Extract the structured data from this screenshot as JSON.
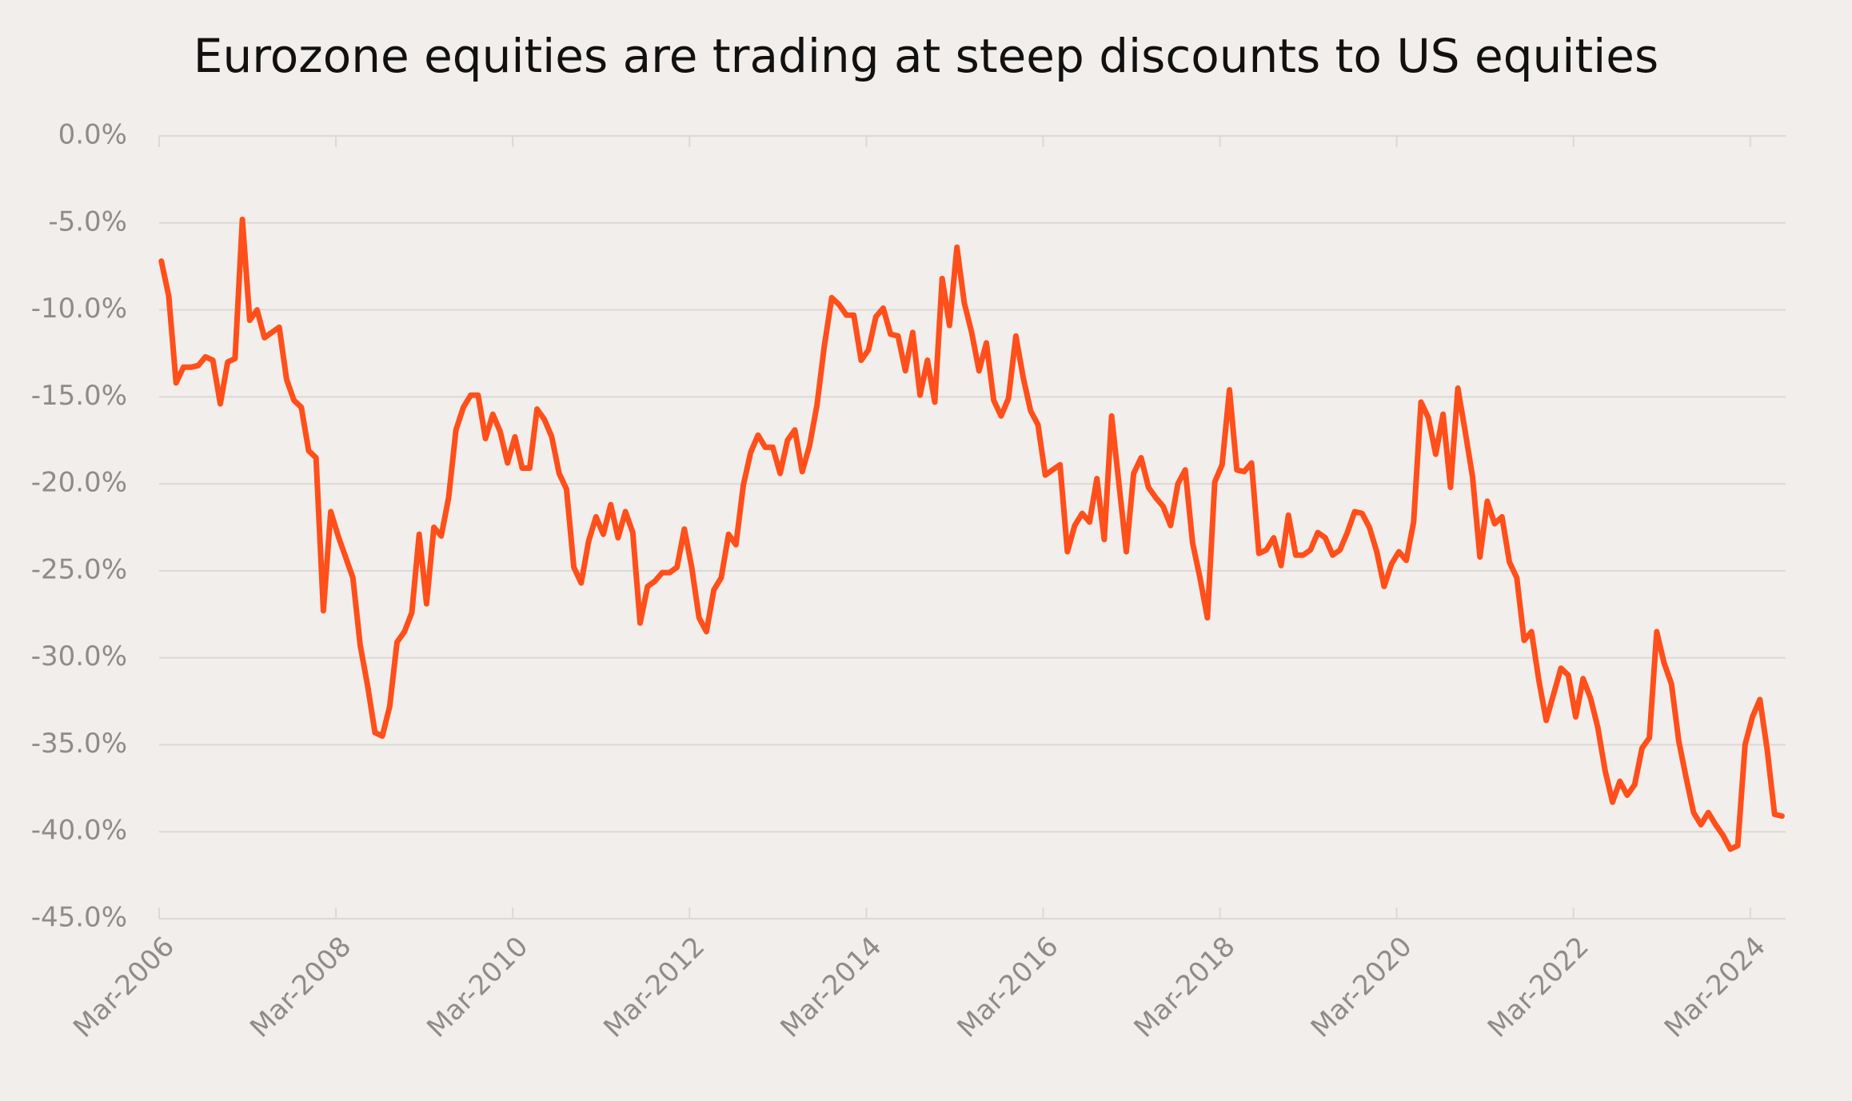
{
  "chart_data": {
    "type": "line",
    "title": "Eurozone equities are trading at steep discounts to US equities",
    "categories": [
      "Mar-2006",
      null,
      null,
      null,
      null,
      null,
      null,
      null,
      null,
      null,
      null,
      null,
      null,
      null,
      null,
      null,
      null,
      null,
      null,
      null,
      null,
      null,
      null,
      null,
      "Mar-2008",
      null,
      null,
      null,
      null,
      null,
      null,
      null,
      null,
      null,
      null,
      null,
      null,
      null,
      null,
      null,
      null,
      null,
      null,
      null,
      null,
      null,
      null,
      null,
      "Mar-2010",
      null,
      null,
      null,
      null,
      null,
      null,
      null,
      null,
      null,
      null,
      null,
      null,
      null,
      null,
      null,
      null,
      null,
      null,
      null,
      null,
      null,
      null,
      null,
      "Mar-2012",
      null,
      null,
      null,
      null,
      null,
      null,
      null,
      null,
      null,
      null,
      null,
      null,
      null,
      null,
      null,
      null,
      null,
      null,
      null,
      null,
      null,
      null,
      null,
      "Mar-2014",
      null,
      null,
      null,
      null,
      null,
      null,
      null,
      null,
      null,
      null,
      null,
      null,
      null,
      null,
      null,
      null,
      null,
      null,
      null,
      null,
      null,
      null,
      null,
      "Mar-2016",
      null,
      null,
      null,
      null,
      null,
      null,
      null,
      null,
      null,
      null,
      null,
      null,
      null,
      null,
      null,
      null,
      null,
      null,
      null,
      null,
      null,
      null,
      null,
      "Mar-2018",
      null,
      null,
      null,
      null,
      null,
      null,
      null,
      null,
      null,
      null,
      null,
      null,
      null,
      null,
      null,
      null,
      null,
      null,
      null,
      null,
      null,
      null,
      null,
      "Mar-2020",
      null,
      null,
      null,
      null,
      null,
      null,
      null,
      null,
      null,
      null,
      null,
      null,
      null,
      null,
      null,
      null,
      null,
      null,
      null,
      null,
      null,
      null,
      null,
      "Mar-2022",
      null,
      null,
      null,
      null,
      null,
      null,
      null,
      null,
      null,
      null,
      null,
      null,
      null,
      null,
      null,
      null,
      null,
      null,
      null,
      null,
      null,
      null,
      null,
      "Mar-2024",
      null,
      null,
      null,
      null
    ],
    "series": [
      {
        "color": "#ff4f1a",
        "values": [
          -7.2,
          -9.2,
          -14.2,
          -13.3,
          -13.3,
          -13.2,
          -12.7,
          -12.9,
          -15.4,
          -13.0,
          -12.8,
          -4.8,
          -10.6,
          -10.0,
          -11.6,
          -11.3,
          -11.0,
          -14.0,
          -15.2,
          -15.6,
          -18.1,
          -18.5,
          -27.3,
          -21.6,
          -23.0,
          -24.2,
          -25.4,
          -29.3,
          -31.6,
          -34.3,
          -34.5,
          -32.8,
          -29.1,
          -28.5,
          -27.4,
          -22.9,
          -26.9,
          -22.5,
          -23.0,
          -20.8,
          -16.9,
          -15.6,
          -14.9,
          -14.9,
          -17.4,
          -16.0,
          -17.0,
          -18.8,
          -17.3,
          -19.1,
          -19.1,
          -15.7,
          -16.3,
          -17.3,
          -19.4,
          -20.3,
          -24.8,
          -25.7,
          -23.3,
          -21.9,
          -22.9,
          -21.2,
          -23.1,
          -21.6,
          -22.8,
          -28.0,
          -25.9,
          -25.6,
          -25.1,
          -25.1,
          -24.8,
          -22.6,
          -24.8,
          -27.7,
          -28.5,
          -26.1,
          -25.4,
          -22.9,
          -23.5,
          -20.1,
          -18.2,
          -17.2,
          -17.9,
          -17.9,
          -19.4,
          -17.5,
          -16.9,
          -19.3,
          -17.8,
          -15.5,
          -12.1,
          -9.3,
          -9.7,
          -10.3,
          -10.3,
          -12.9,
          -12.3,
          -10.4,
          -9.9,
          -11.4,
          -11.5,
          -13.5,
          -11.3,
          -14.9,
          -12.9,
          -15.3,
          -8.2,
          -10.9,
          -6.4,
          -9.6,
          -11.3,
          -13.5,
          -11.9,
          -15.2,
          -16.1,
          -15.1,
          -11.5,
          -13.9,
          -15.8,
          -16.6,
          -19.5,
          -19.2,
          -18.9,
          -23.9,
          -22.4,
          -21.7,
          -22.2,
          -19.7,
          -23.2,
          -16.1,
          -20.0,
          -23.9,
          -19.4,
          -18.5,
          -20.2,
          -20.8,
          -21.3,
          -22.4,
          -20.0,
          -19.2,
          -23.4,
          -25.4,
          -27.7,
          -19.9,
          -18.9,
          -14.6,
          -19.2,
          -19.3,
          -18.8,
          -24.0,
          -23.8,
          -23.1,
          -24.7,
          -21.8,
          -24.1,
          -24.1,
          -23.8,
          -22.8,
          -23.1,
          -24.1,
          -23.8,
          -22.8,
          -21.6,
          -21.7,
          -22.5,
          -23.9,
          -25.9,
          -24.6,
          -23.9,
          -24.4,
          -22.2,
          -15.3,
          -16.2,
          -18.3,
          -16.0,
          -20.2,
          -14.5,
          -17.0,
          -19.6,
          -24.2,
          -21.0,
          -22.3,
          -21.9,
          -24.5,
          -25.4,
          -29.0,
          -28.5,
          -31.3,
          -33.6,
          -32.1,
          -30.6,
          -31.0,
          -33.4,
          -31.2,
          -32.3,
          -34.0,
          -36.5,
          -38.3,
          -37.1,
          -37.9,
          -37.3,
          -35.2,
          -34.6,
          -28.5,
          -30.3,
          -31.5,
          -34.8,
          -36.9,
          -38.9,
          -39.6,
          -38.9,
          -39.6,
          -40.2,
          -41.0,
          -40.8,
          -35.0,
          -33.4,
          -32.4,
          -35.3,
          -39.0,
          -39.1
        ]
      }
    ],
    "ylim": [
      -45,
      0
    ],
    "yticks": [
      {
        "value": 0,
        "label": "0.0%"
      },
      {
        "value": -5,
        "label": "-5.0%"
      },
      {
        "value": -10,
        "label": "-10.0%"
      },
      {
        "value": -15,
        "label": "-15.0%"
      },
      {
        "value": -20,
        "label": "-20.0%"
      },
      {
        "value": -25,
        "label": "-25.0%"
      },
      {
        "value": -30,
        "label": "-30.0%"
      },
      {
        "value": -35,
        "label": "-35.0%"
      },
      {
        "value": -40,
        "label": "-40.0%"
      },
      {
        "value": -45,
        "label": "-45.0%"
      }
    ],
    "grid": true
  }
}
